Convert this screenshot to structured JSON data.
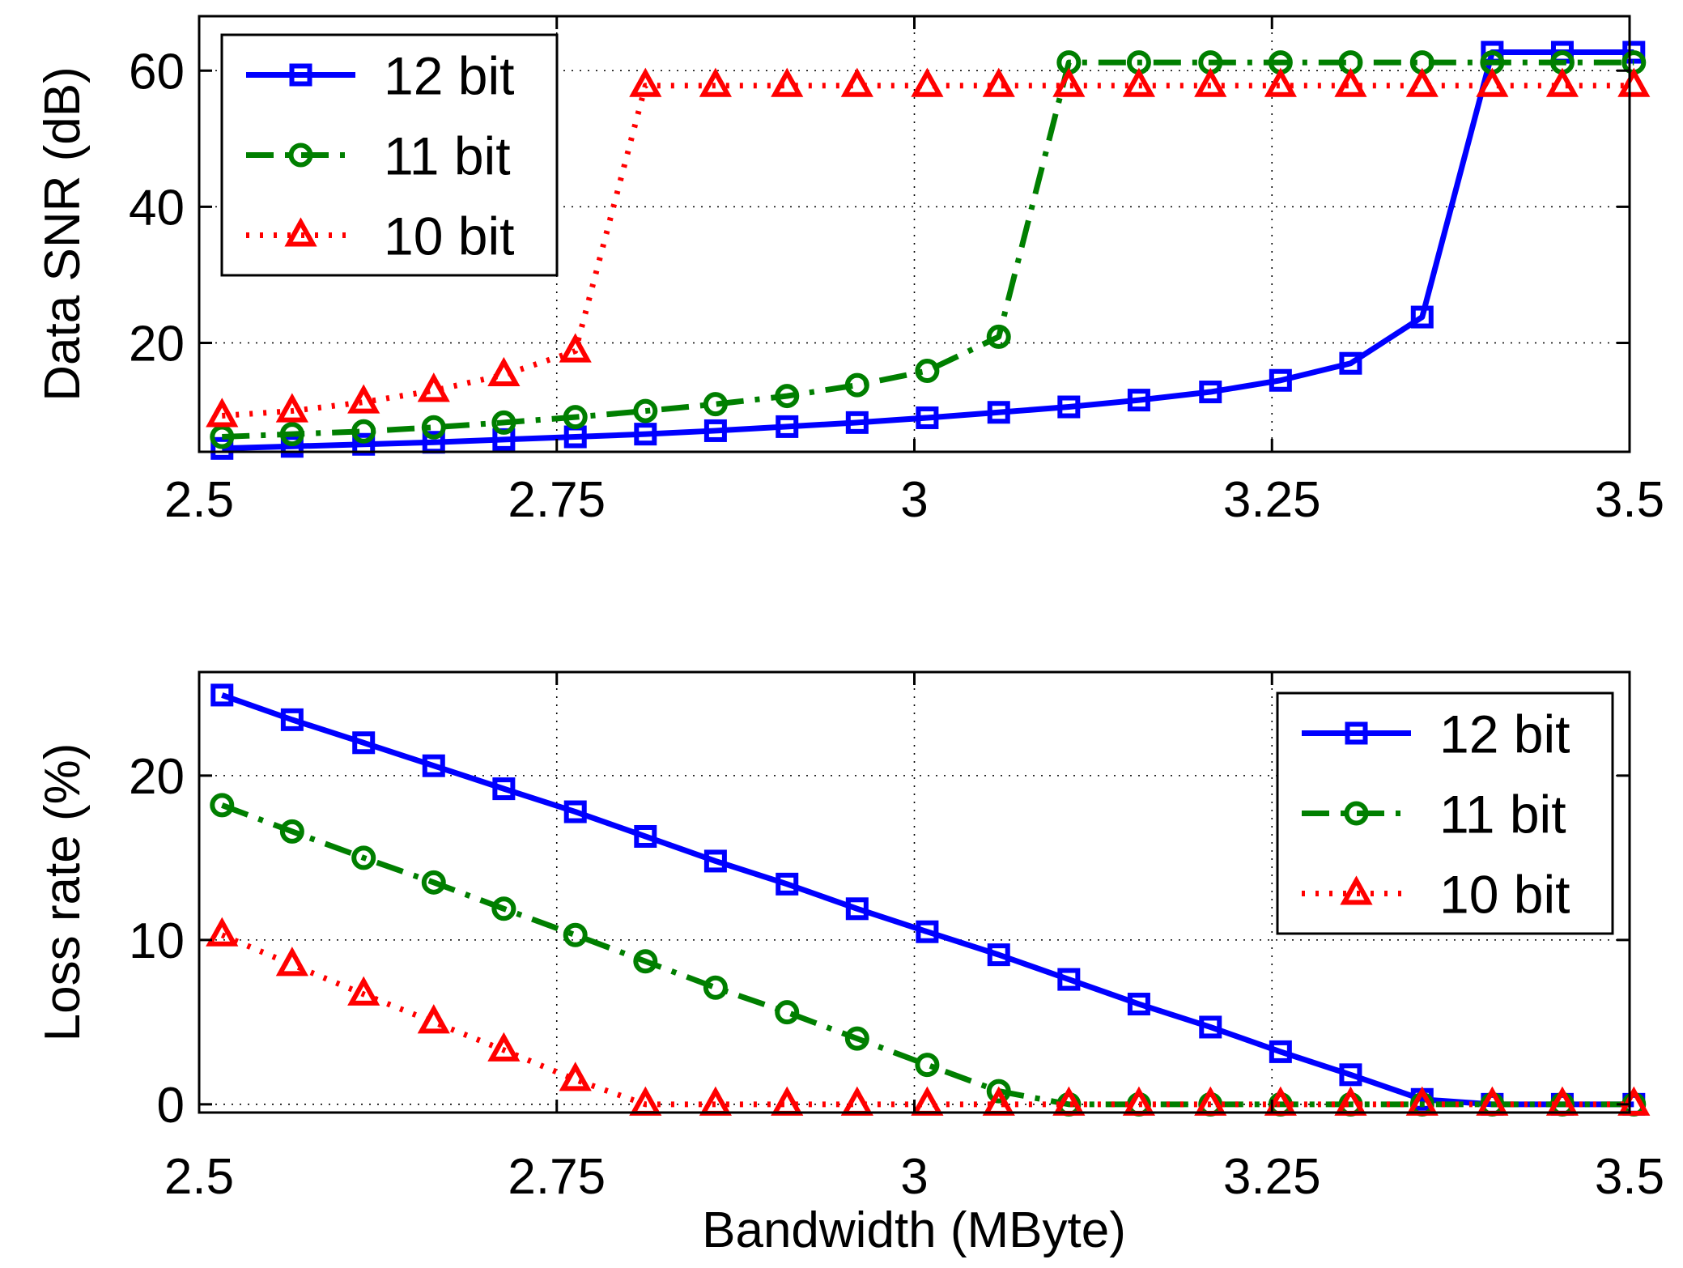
{
  "chart_data": [
    {
      "type": "line",
      "title": "",
      "xlabel": "",
      "ylabel": "Data SNR (dB)",
      "xlim": [
        2.5,
        3.5
      ],
      "ylim": [
        4,
        68
      ],
      "xticks": [
        2.5,
        2.75,
        3,
        3.25,
        3.5
      ],
      "xtick_labels": [
        "2.5",
        "2.75",
        "3",
        "3.25",
        "3.5"
      ],
      "yticks": [
        20,
        40,
        60
      ],
      "ytick_labels": [
        "20",
        "40",
        "60"
      ],
      "grid": true,
      "legend_position": "top-left",
      "x": [
        2.516,
        2.565,
        2.615,
        2.664,
        2.713,
        2.763,
        2.812,
        2.861,
        2.911,
        2.96,
        3.009,
        3.059,
        3.108,
        3.157,
        3.207,
        3.256,
        3.305,
        3.355,
        3.404,
        3.453,
        3.503
      ],
      "series": [
        {
          "name": "12 bit",
          "color": "#0000ff",
          "dash": "solid",
          "marker": "square",
          "values": [
            4.5,
            4.8,
            5.1,
            5.4,
            5.8,
            6.2,
            6.6,
            7.1,
            7.7,
            8.3,
            9.0,
            9.8,
            10.6,
            11.6,
            12.8,
            14.5,
            17.0,
            23.8,
            62.7,
            62.7,
            62.7
          ]
        },
        {
          "name": "11 bit",
          "color": "#007f00",
          "dash": "dashdot",
          "marker": "circle",
          "values": [
            6.2,
            6.6,
            7.0,
            7.6,
            8.3,
            9.1,
            10.0,
            11.0,
            12.2,
            13.8,
            15.9,
            20.9,
            61.2,
            61.2,
            61.2,
            61.2,
            61.2,
            61.2,
            61.2,
            61.2,
            61.2
          ]
        },
        {
          "name": "10 bit",
          "color": "#ff0000",
          "dash": "dotted",
          "marker": "triangle",
          "values": [
            9.3,
            10.0,
            11.3,
            13.0,
            15.3,
            18.8,
            57.8,
            57.8,
            57.8,
            57.8,
            57.8,
            57.8,
            57.8,
            57.8,
            57.8,
            57.8,
            57.8,
            57.8,
            57.8,
            57.8,
            57.8
          ]
        }
      ]
    },
    {
      "type": "line",
      "title": "",
      "xlabel": "Bandwidth (MByte)",
      "ylabel": "Loss rate (%)",
      "xlim": [
        2.5,
        3.5
      ],
      "ylim": [
        -0.5,
        26.3
      ],
      "xticks": [
        2.5,
        2.75,
        3,
        3.25,
        3.5
      ],
      "xtick_labels": [
        "2.5",
        "2.75",
        "3",
        "3.25",
        "3.5"
      ],
      "yticks": [
        0,
        10,
        20
      ],
      "ytick_labels": [
        "0",
        "10",
        "20"
      ],
      "grid": true,
      "legend_position": "top-right",
      "x": [
        2.516,
        2.565,
        2.615,
        2.664,
        2.713,
        2.763,
        2.812,
        2.861,
        2.911,
        2.96,
        3.009,
        3.059,
        3.108,
        3.157,
        3.207,
        3.256,
        3.305,
        3.355,
        3.404,
        3.453,
        3.503
      ],
      "series": [
        {
          "name": "12 bit",
          "color": "#0000ff",
          "dash": "solid",
          "marker": "square",
          "values": [
            24.9,
            23.4,
            22.0,
            20.6,
            19.2,
            17.8,
            16.3,
            14.8,
            13.4,
            11.9,
            10.5,
            9.1,
            7.6,
            6.1,
            4.7,
            3.2,
            1.8,
            0.3,
            0.0,
            0.0,
            0.0
          ]
        },
        {
          "name": "11 bit",
          "color": "#007f00",
          "dash": "dashdot",
          "marker": "circle",
          "values": [
            18.2,
            16.6,
            15.0,
            13.5,
            11.9,
            10.3,
            8.7,
            7.1,
            5.6,
            4.0,
            2.4,
            0.8,
            0.0,
            0.0,
            0.0,
            0.0,
            0.0,
            0.0,
            0.0,
            0.0,
            0.0
          ]
        },
        {
          "name": "10 bit",
          "color": "#ff0000",
          "dash": "dotted",
          "marker": "triangle",
          "values": [
            10.3,
            8.5,
            6.7,
            5.0,
            3.3,
            1.5,
            0.0,
            0.0,
            0.0,
            0.0,
            0.0,
            0.0,
            0.0,
            0.0,
            0.0,
            0.0,
            0.0,
            0.0,
            0.0,
            0.0,
            0.0
          ]
        }
      ]
    }
  ]
}
